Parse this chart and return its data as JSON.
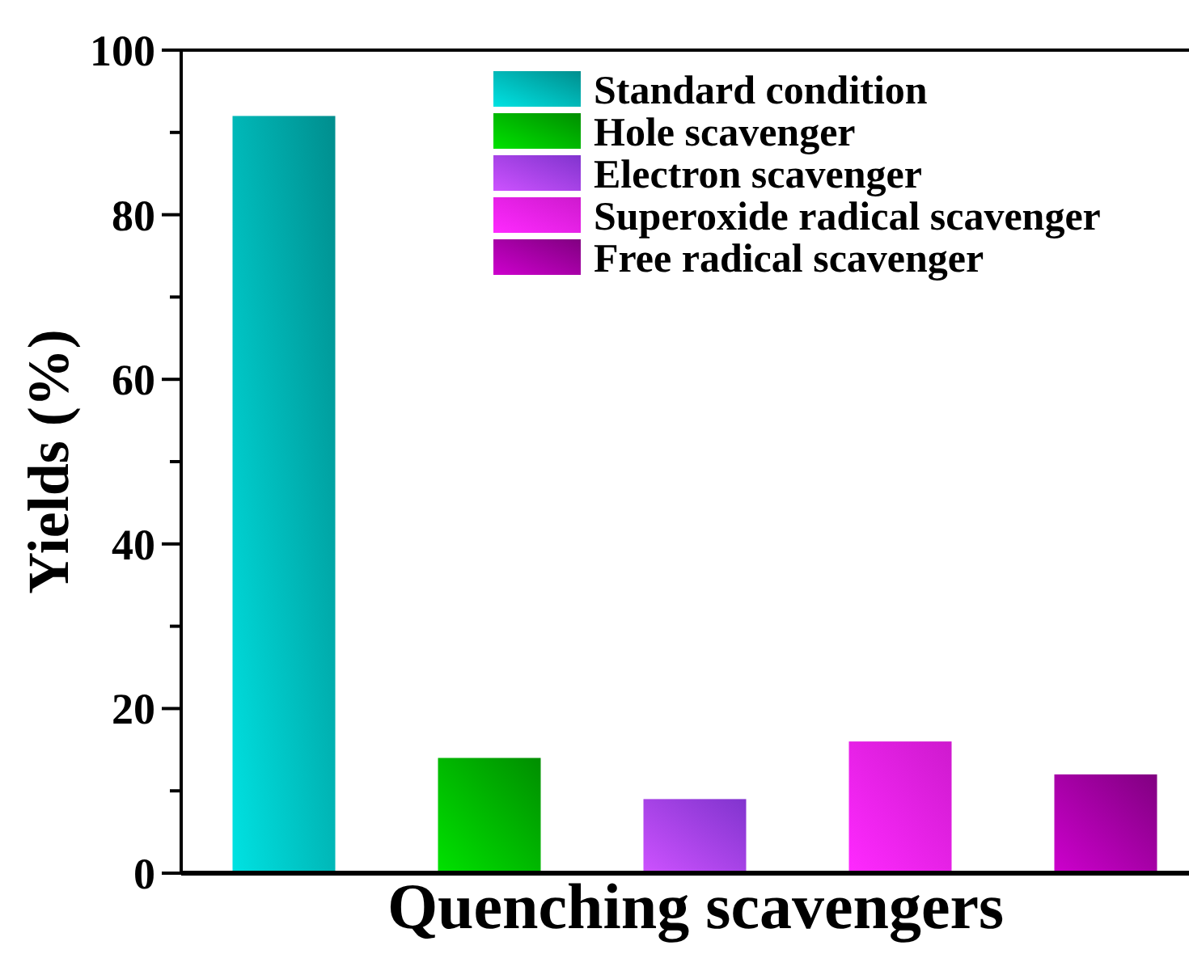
{
  "chart_data": {
    "type": "bar",
    "xlabel": "Quenching scavengers",
    "ylabel": "Yields (%)",
    "categories": [
      null,
      null,
      null,
      null,
      null
    ],
    "series": [
      {
        "name": "Standard condition",
        "color": "#00b0b0",
        "values": [
          92,
          null,
          null,
          null,
          null
        ]
      },
      {
        "name": "Hole scavenger",
        "color": "#00b000",
        "values": [
          null,
          14,
          null,
          null,
          null
        ]
      },
      {
        "name": "Electron scavenger",
        "color": "#a040ff",
        "values": [
          null,
          null,
          9,
          null,
          null
        ]
      },
      {
        "name": "Superoxide radical scavenger",
        "color": "#ff20ff",
        "values": [
          null,
          null,
          null,
          16,
          null
        ]
      },
      {
        "name": "Free radical scavenger",
        "color": "#a000a0",
        "values": [
          null,
          null,
          null,
          null,
          12
        ]
      }
    ],
    "ylim": [
      0,
      100
    ],
    "yticks": [
      0,
      {
        "value": 10,
        "label": null
      },
      20,
      {
        "value": 30,
        "label": null
      },
      40,
      {
        "value": 50,
        "label": null
      },
      60,
      {
        "value": 70,
        "label": null
      },
      80,
      {
        "value": 90,
        "label": null
      },
      100
    ],
    "legend": "top right",
    "grid": false
  }
}
